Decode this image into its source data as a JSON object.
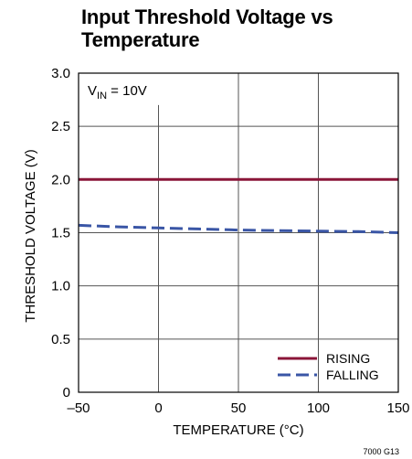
{
  "chart_data": {
    "type": "line",
    "title_lines": [
      "Input Threshold Voltage vs",
      "Temperature"
    ],
    "xlabel": "TEMPERATURE (°C)",
    "ylabel": "THRESHOLD VOLTAGE (V)",
    "xlim": [
      -50,
      150
    ],
    "ylim": [
      0,
      3.0
    ],
    "x_ticks": [
      -50,
      0,
      50,
      100,
      150
    ],
    "x_tick_labels": [
      "–50",
      "0",
      "50",
      "100",
      "150"
    ],
    "y_ticks": [
      0,
      0.5,
      1.0,
      1.5,
      2.0,
      2.5,
      3.0
    ],
    "y_tick_labels": [
      "0",
      "0.5",
      "1.0",
      "1.5",
      "2.0",
      "2.5",
      "3.0"
    ],
    "grid": true,
    "legend_position": "bottom-right",
    "annotation": {
      "main": "V",
      "sub": "IN",
      "rest": " = 10V"
    },
    "series": [
      {
        "name": "RISING",
        "color": "#8a1538",
        "dash": "solid",
        "x": [
          -50,
          0,
          50,
          100,
          150
        ],
        "y": [
          2.0,
          2.0,
          2.0,
          2.0,
          2.0
        ]
      },
      {
        "name": "FALLING",
        "color": "#3a56a6",
        "dash": "dashed",
        "x": [
          -50,
          -25,
          0,
          25,
          50,
          75,
          100,
          125,
          150
        ],
        "y": [
          1.57,
          1.555,
          1.545,
          1.535,
          1.525,
          1.52,
          1.515,
          1.51,
          1.5
        ]
      }
    ],
    "figure_id": "7000 G13"
  }
}
